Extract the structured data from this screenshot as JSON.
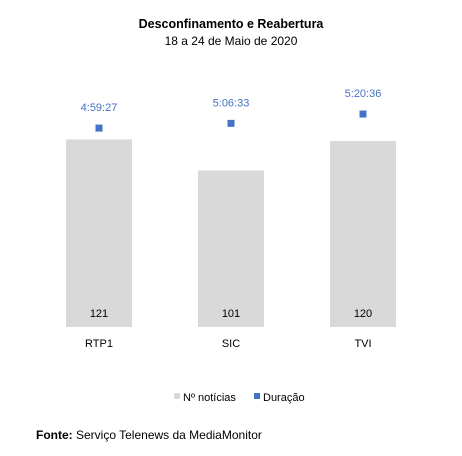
{
  "chart_data": {
    "type": "bar",
    "title": "Desconfinamento e Reabertura",
    "subtitle": "18 a 24 de Maio de 2020",
    "categories": [
      "RTP1",
      "SIC",
      "TVI"
    ],
    "series": [
      {
        "name": "Nº notícias",
        "type": "bar",
        "axis": "primary",
        "values": [
          121,
          101,
          120
        ],
        "labels": [
          "121",
          "101",
          "120"
        ],
        "color": "#d9d9d9"
      },
      {
        "name": "Duração",
        "type": "scatter",
        "axis": "secondary",
        "values_seconds": [
          17967,
          18393,
          19236
        ],
        "labels": [
          "4:59:27",
          "5:06:33",
          "5:20:36"
        ],
        "color": "#4472c4"
      }
    ],
    "ylim": [
      0,
      180
    ],
    "y2lim_seconds": [
      0,
      25200
    ],
    "grid": false,
    "legend_position": "bottom"
  },
  "source": {
    "label": "Fonte:",
    "text": "Serviço Telenews da MediaMonitor"
  }
}
